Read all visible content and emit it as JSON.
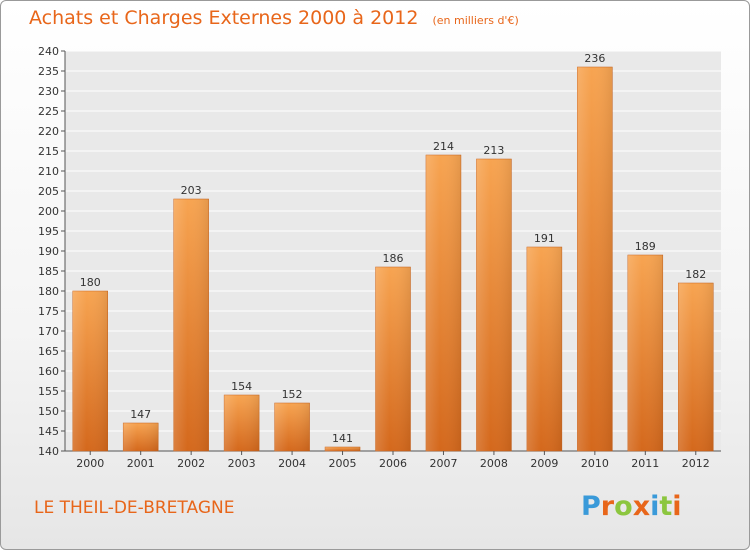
{
  "header": {
    "title": "Achats et Charges Externes 2000 à 2012",
    "unit": "(en milliers d'€)"
  },
  "footer": {
    "place": "LE THEIL-DE-BRETAGNE",
    "logo_letters": [
      "P",
      "r",
      "o",
      "x",
      "i",
      "t",
      "i"
    ],
    "logo_colors": [
      "#3a9ad9",
      "#e8661a",
      "#8cc63f",
      "#e8661a",
      "#3a9ad9",
      "#8cc63f",
      "#e8661a"
    ]
  },
  "chart_data": {
    "type": "bar",
    "categories": [
      "2000",
      "2001",
      "2002",
      "2003",
      "2004",
      "2005",
      "2006",
      "2007",
      "2008",
      "2009",
      "2010",
      "2011",
      "2012"
    ],
    "values": [
      180,
      147,
      203,
      154,
      152,
      141,
      186,
      214,
      213,
      191,
      236,
      189,
      182
    ],
    "data_labels": [
      "180",
      "147",
      "203",
      "154",
      "152",
      "141",
      "186",
      "214",
      "213",
      "191",
      "236",
      "189",
      "182"
    ],
    "ylim": [
      140,
      240
    ],
    "ystep": 5,
    "grid": true,
    "bar_color_top": "#f7a451",
    "bar_color_bottom": "#d4681c"
  }
}
